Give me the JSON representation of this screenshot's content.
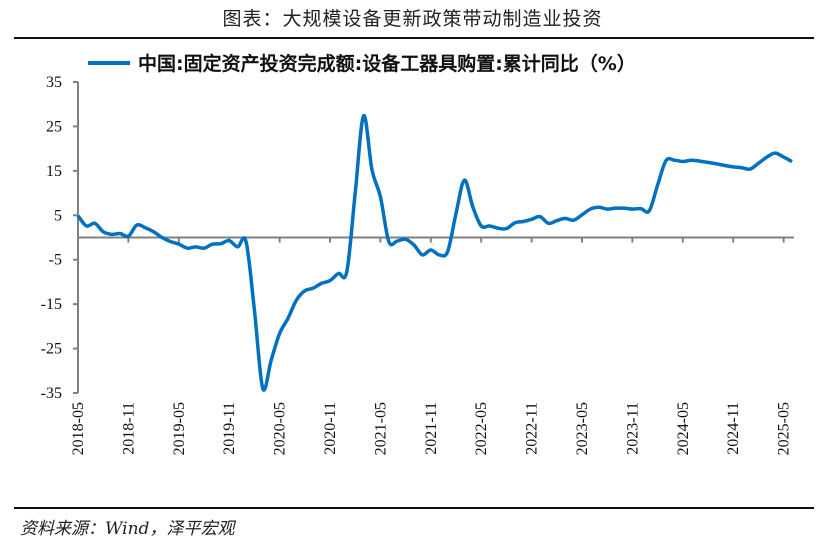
{
  "title": "图表：大规模设备更新政策带动制造业投资",
  "source": "资料来源：Wind，泽平宏观",
  "colors": {
    "series": "#0070C0",
    "axis": "#808080"
  },
  "chart_data": {
    "type": "line",
    "title": "图表：大规模设备更新政策带动制造业投资",
    "xlabel": "",
    "ylabel": "",
    "ylim": [
      -35,
      35
    ],
    "yticks": [
      35,
      25,
      15,
      5,
      -5,
      -15,
      -25,
      -35
    ],
    "xtick_labels": [
      "2018-05",
      "2018-11",
      "2019-05",
      "2019-11",
      "2020-05",
      "2020-11",
      "2021-05",
      "2021-11",
      "2022-05",
      "2022-11",
      "2023-05",
      "2023-11",
      "2024-05",
      "2024-11",
      "2025-05"
    ],
    "grid": false,
    "legend_placement": "top",
    "series": [
      {
        "name": "中国:固定资产投资完成额:设备工器具购置:累计同比（%）",
        "x": [
          "2018-05",
          "2018-06",
          "2018-07",
          "2018-08",
          "2018-09",
          "2018-10",
          "2018-11",
          "2018-12",
          "2019-01",
          "2019-02",
          "2019-03",
          "2019-04",
          "2019-05",
          "2019-06",
          "2019-07",
          "2019-08",
          "2019-09",
          "2019-10",
          "2019-11",
          "2019-12",
          "2020-01",
          "2020-02",
          "2020-03",
          "2020-04",
          "2020-05",
          "2020-06",
          "2020-07",
          "2020-08",
          "2020-09",
          "2020-10",
          "2020-11",
          "2020-12",
          "2021-01",
          "2021-02",
          "2021-03",
          "2021-04",
          "2021-05",
          "2021-06",
          "2021-07",
          "2021-08",
          "2021-09",
          "2021-10",
          "2021-11",
          "2021-12",
          "2022-01",
          "2022-02",
          "2022-03",
          "2022-04",
          "2022-05",
          "2022-06",
          "2022-07",
          "2022-08",
          "2022-09",
          "2022-10",
          "2022-11",
          "2022-12",
          "2023-01",
          "2023-02",
          "2023-03",
          "2023-04",
          "2023-05",
          "2023-06",
          "2023-07",
          "2023-08",
          "2023-09",
          "2023-10",
          "2023-11",
          "2023-12",
          "2024-01",
          "2024-02",
          "2024-03",
          "2024-04",
          "2024-05",
          "2024-06",
          "2024-07",
          "2024-08",
          "2024-09",
          "2024-10",
          "2024-11",
          "2024-12",
          "2025-01",
          "2025-02",
          "2025-03",
          "2025-04",
          "2025-05",
          "2025-06"
        ],
        "values": [
          4.9,
          2.6,
          3.2,
          1.3,
          0.7,
          0.9,
          0.3,
          2.8,
          2.2,
          1.3,
          0.0,
          -0.9,
          -1.5,
          -2.4,
          -2.1,
          -2.4,
          -1.5,
          -1.4,
          -0.7,
          -2.1,
          -0.9,
          -16.3,
          -34.0,
          -27.6,
          -21.6,
          -18.2,
          -14.1,
          -12.0,
          -11.4,
          -10.3,
          -9.7,
          -8.1,
          -7.7,
          10.0,
          27.4,
          15.2,
          9.2,
          -0.9,
          -0.8,
          -0.4,
          -1.7,
          -3.9,
          -2.8,
          -3.9,
          -3.2,
          5.4,
          12.9,
          6.9,
          2.6,
          2.6,
          2.1,
          2.0,
          3.3,
          3.6,
          4.1,
          4.7,
          3.2,
          3.8,
          4.3,
          3.9,
          5.1,
          6.4,
          6.8,
          6.4,
          6.6,
          6.6,
          6.4,
          6.5,
          6.0,
          11.8,
          17.3,
          17.4,
          17.1,
          17.4,
          17.2,
          16.9,
          16.6,
          16.2,
          15.9,
          15.7,
          15.4,
          16.7,
          18.1,
          19.0,
          18.1,
          17.1
        ]
      }
    ]
  }
}
